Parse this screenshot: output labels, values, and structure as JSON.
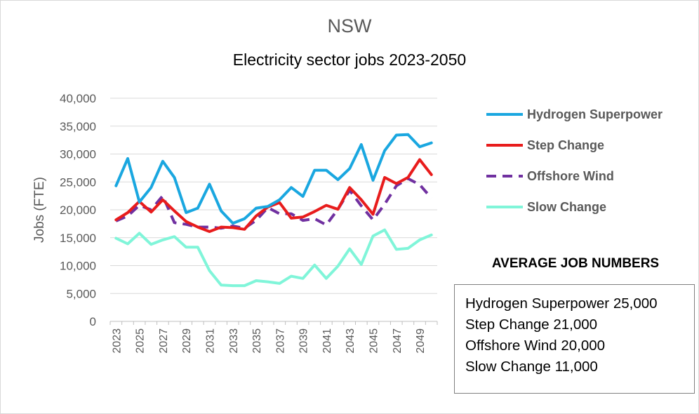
{
  "chart_data": {
    "type": "line",
    "title": "NSW",
    "subtitle": "Electricity sector jobs 2023-2050",
    "xlabel": "",
    "ylabel": "Jobs (FTE)",
    "ylim": [
      0,
      40000
    ],
    "yticks": [
      "0",
      "5,000",
      "10,000",
      "15,000",
      "20,000",
      "25,000",
      "30,000",
      "35,000",
      "40,000"
    ],
    "x": [
      2023,
      2024,
      2025,
      2026,
      2027,
      2028,
      2029,
      2030,
      2031,
      2032,
      2033,
      2034,
      2035,
      2036,
      2037,
      2038,
      2039,
      2040,
      2041,
      2042,
      2043,
      2044,
      2045,
      2046,
      2047,
      2048,
      2049,
      2050
    ],
    "xticks": [
      "2023",
      "2025",
      "2027",
      "2029",
      "2031",
      "2033",
      "2035",
      "2037",
      "2039",
      "2041",
      "2043",
      "2045",
      "2047",
      "2049"
    ],
    "grid": true,
    "legend_position": "right",
    "series": [
      {
        "name": "Hydrogen Superpower",
        "color": "#1aa7e0",
        "dash": "solid",
        "values": [
          24300,
          29200,
          21400,
          24000,
          28700,
          25800,
          19500,
          20300,
          24600,
          19800,
          17600,
          18400,
          20300,
          20600,
          21800,
          24000,
          22400,
          27100,
          27100,
          25400,
          27400,
          31700,
          25300,
          30600,
          33400,
          33500,
          31300,
          32000
        ]
      },
      {
        "name": "Step Change",
        "color": "#e81c1c",
        "dash": "solid",
        "values": [
          18200,
          19500,
          21500,
          19600,
          21800,
          19800,
          17900,
          16900,
          16100,
          16900,
          16800,
          16500,
          18900,
          20500,
          21300,
          18500,
          18700,
          19700,
          20800,
          20100,
          24000,
          21800,
          19200,
          25800,
          24700,
          25800,
          29000,
          26300
        ]
      },
      {
        "name": "Offshore Wind",
        "color": "#7030a0",
        "dash": "dashed",
        "values": [
          18000,
          18900,
          20800,
          20000,
          22500,
          17700,
          17400,
          16900,
          16900,
          16700,
          17100,
          16700,
          18100,
          20400,
          19300,
          19300,
          18100,
          18400,
          17300,
          20100,
          23500,
          20700,
          18200,
          21000,
          24300,
          25600,
          24500,
          22100
        ]
      },
      {
        "name": "Slow Change",
        "color": "#80f5d9",
        "dash": "solid",
        "values": [
          14900,
          13900,
          15800,
          13800,
          14600,
          15200,
          13300,
          13300,
          9100,
          6500,
          6400,
          6400,
          7300,
          7100,
          6800,
          8100,
          7700,
          10100,
          7700,
          9900,
          13000,
          10200,
          15300,
          16400,
          12900,
          13100,
          14600,
          15500
        ]
      }
    ]
  },
  "averages": {
    "heading": "AVERAGE JOB NUMBERS",
    "lines": [
      "Hydrogen Superpower 25,000",
      "Step Change 21,000",
      "Offshore Wind 20,000",
      "Slow Change 11,000"
    ]
  }
}
